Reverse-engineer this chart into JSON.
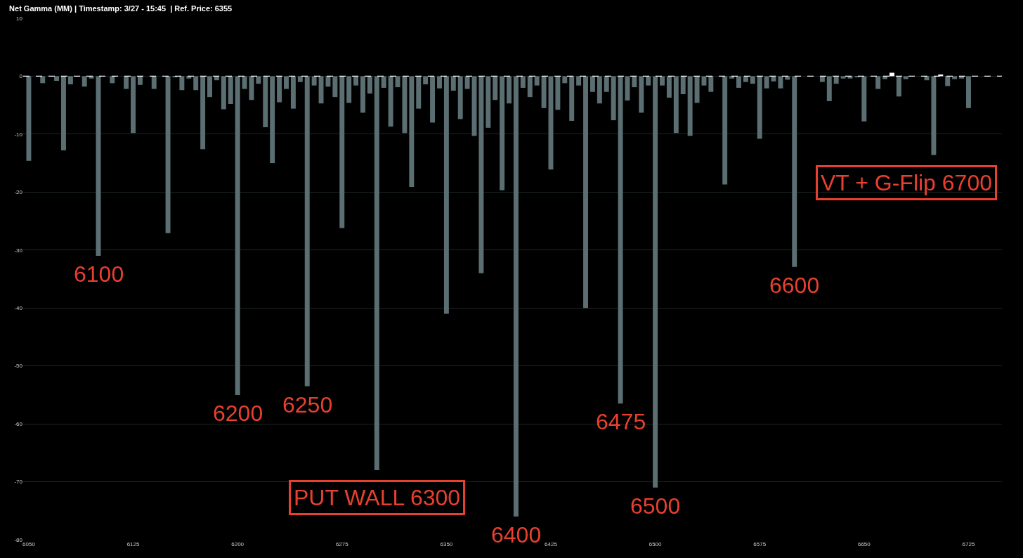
{
  "chart_data": {
    "type": "bar",
    "title": "Net Gamma (MM) | Timestamp: 3/27 - 15:45  | Ref. Price: 6355",
    "x": [
      6050,
      6055,
      6060,
      6065,
      6070,
      6075,
      6080,
      6085,
      6090,
      6095,
      6100,
      6105,
      6110,
      6115,
      6120,
      6125,
      6130,
      6135,
      6140,
      6145,
      6150,
      6155,
      6160,
      6165,
      6170,
      6175,
      6180,
      6185,
      6190,
      6195,
      6200,
      6205,
      6210,
      6215,
      6220,
      6225,
      6230,
      6235,
      6240,
      6245,
      6250,
      6255,
      6260,
      6265,
      6270,
      6275,
      6280,
      6285,
      6290,
      6295,
      6300,
      6305,
      6310,
      6315,
      6320,
      6325,
      6330,
      6335,
      6340,
      6345,
      6350,
      6355,
      6360,
      6365,
      6370,
      6375,
      6380,
      6385,
      6390,
      6395,
      6400,
      6405,
      6410,
      6415,
      6420,
      6425,
      6430,
      6435,
      6440,
      6445,
      6450,
      6455,
      6460,
      6465,
      6470,
      6475,
      6480,
      6485,
      6490,
      6495,
      6500,
      6505,
      6510,
      6515,
      6520,
      6525,
      6530,
      6535,
      6540,
      6545,
      6550,
      6555,
      6560,
      6565,
      6570,
      6575,
      6580,
      6585,
      6590,
      6595,
      6600,
      6605,
      6610,
      6615,
      6620,
      6625,
      6630,
      6635,
      6640,
      6645,
      6650,
      6655,
      6660,
      6665,
      6670,
      6675,
      6680,
      6685,
      6690,
      6695,
      6700,
      6705,
      6710,
      6715,
      6720,
      6725,
      6730,
      6735,
      6740,
      6745
    ],
    "values": [
      -14.6,
      0,
      -1.2,
      0,
      -0.8,
      -12.8,
      -1.4,
      0,
      -1.8,
      -0.4,
      -31,
      0,
      -1.2,
      0,
      -2.2,
      -9.8,
      -1.5,
      0,
      -2.2,
      0,
      -27.1,
      -0.2,
      -2.4,
      -0.4,
      -2.4,
      -12.6,
      -3.6,
      -0.7,
      -5.7,
      -4.8,
      -55,
      -2.2,
      -4.1,
      -1.3,
      -8.8,
      -15,
      -4.5,
      -2.2,
      -5.6,
      -1,
      -53.5,
      -1.6,
      -4.7,
      -1.8,
      -3.6,
      -26.2,
      -4.6,
      -1.6,
      -6.3,
      -3,
      -68,
      -2,
      -8.7,
      -1.9,
      -9.8,
      -19.1,
      -5.6,
      -1.4,
      -8,
      -2.1,
      -41,
      -2.5,
      -7.4,
      -2.2,
      -10.3,
      -34,
      -8.9,
      -4.1,
      -19.7,
      -4.7,
      -76,
      -2,
      -3.6,
      -1.6,
      -5.5,
      -16.1,
      -5.8,
      -1.2,
      -7.7,
      -1.6,
      -40,
      -2.7,
      -4.7,
      -2.7,
      -7.6,
      -56.5,
      -4.2,
      -1.9,
      -6.3,
      -1.6,
      -71,
      -1.6,
      -3.7,
      -9.8,
      -3.1,
      -10.3,
      -4.6,
      -1.6,
      -2.7,
      0,
      -18.7,
      -0.4,
      -2,
      -1,
      -1.3,
      -10.8,
      -2.1,
      -0.9,
      -2.1,
      -0.6,
      -32.9,
      0,
      0,
      0,
      -1,
      -4.3,
      -1.3,
      -0.4,
      -0.4,
      -0.2,
      -7.8,
      0,
      -2.2,
      -0.5,
      0.6,
      -3.5,
      -0.5,
      0,
      0,
      -0.7,
      -13.6,
      0.3,
      -1.7,
      -0.5,
      -0.4,
      -5.5,
      0,
      0,
      null,
      0
    ],
    "colors": [
      "#5b6f73",
      "#5b6f73",
      "#5b6f73",
      "#5b6f73",
      "#5b6f73",
      "#5b6f73",
      "#5b6f73",
      "#5b6f73",
      "#5b6f73",
      "#5b6f73",
      "#5b6f73",
      "#5b6f73",
      "#5b6f73",
      "#5b6f73",
      "#5b6f73",
      "#5b6f73",
      "#5b6f73",
      "#5b6f73",
      "#5b6f73",
      "#5b6f73",
      "#5b6f73",
      "#5b6f73",
      "#5b6f73",
      "#5b6f73",
      "#5b6f73",
      "#5b6f73",
      "#5b6f73",
      "#5b6f73",
      "#5b6f73",
      "#5b6f73",
      "#5b6f73",
      "#5b6f73",
      "#5b6f73",
      "#5b6f73",
      "#5b6f73",
      "#5b6f73",
      "#5b6f73",
      "#5b6f73",
      "#5b6f73",
      "#5b6f73",
      "#5b6f73",
      "#5b6f73",
      "#5b6f73",
      "#5b6f73",
      "#5b6f73",
      "#5b6f73",
      "#5b6f73",
      "#5b6f73",
      "#5b6f73",
      "#5b6f73",
      "#5b6f73",
      "#5b6f73",
      "#5b6f73",
      "#5b6f73",
      "#5b6f73",
      "#5b6f73",
      "#5b6f73",
      "#5b6f73",
      "#5b6f73",
      "#5b6f73",
      "#5b6f73",
      "#5b6f73",
      "#5b6f73",
      "#5b6f73",
      "#5b6f73",
      "#5b6f73",
      "#5b6f73",
      "#5b6f73",
      "#5b6f73",
      "#5b6f73",
      "#5b6f73",
      "#5b6f73",
      "#5b6f73",
      "#5b6f73",
      "#5b6f73",
      "#5b6f73",
      "#5b6f73",
      "#5b6f73",
      "#5b6f73",
      "#5b6f73",
      "#5b6f73",
      "#5b6f73",
      "#5b6f73",
      "#5b6f73",
      "#5b6f73",
      "#5b6f73",
      "#5b6f73",
      "#5b6f73",
      "#5b6f73",
      "#5b6f73",
      "#5b6f73",
      "#5b6f73",
      "#5b6f73",
      "#5b6f73",
      "#5b6f73",
      "#5b6f73",
      "#5b6f73",
      "#5b6f73",
      "#5b6f73",
      "#5b6f73",
      "#5b6f73",
      "#5b6f73",
      "#5b6f73",
      "#5b6f73",
      "#5b6f73",
      "#5b6f73",
      "#5b6f73",
      "#5b6f73",
      "#5b6f73",
      "#5b6f73",
      "#5b6f73",
      "#5b6f73",
      "#5b6f73",
      "#5b6f73",
      "#5b6f73",
      "#5b6f73",
      "#5b6f73",
      "#5b6f73",
      "#5b6f73",
      "#5b6f73",
      "#5b6f73",
      "#5b6f73",
      "#5b6f73",
      "#5b6f73",
      "#ffffff",
      "#5b6f73",
      "#5b6f73",
      "#5b6f73",
      "#5b6f73",
      "#5b6f73",
      "#5b6f73",
      "#ffffff",
      "#5b6f73",
      "#5b6f73",
      "#5b6f73",
      "#5b6f73",
      "#5b6f73",
      "#5b6f73",
      "#ffffff",
      "#5b6f73"
    ],
    "xlim": [
      6046,
      6749
    ],
    "xticks": [
      6050,
      6125,
      6200,
      6275,
      6350,
      6425,
      6500,
      6575,
      6650,
      6725
    ],
    "ylim": [
      -80,
      10
    ],
    "yticks": [
      10,
      0,
      -10,
      -20,
      -30,
      -40,
      -50,
      -60,
      -70,
      -80
    ],
    "grid": "y",
    "ref_lines": [
      {
        "axis": "y",
        "value": 0,
        "color": "#ffffff",
        "line_style": "dashed"
      }
    ],
    "annotations": [
      {
        "text": "6100",
        "x": 6100,
        "y": -31
      },
      {
        "text": "6200",
        "x": 6200,
        "y": -55
      },
      {
        "text": "6250",
        "x": 6250,
        "y": -53.5
      },
      {
        "text": "PUT WALL 6300",
        "x": 6300,
        "y": -68
      },
      {
        "text": "6400",
        "x": 6400,
        "y": -76
      },
      {
        "text": "6475",
        "x": 6475,
        "y": -56.5
      },
      {
        "text": "6500",
        "x": 6500,
        "y": -71
      },
      {
        "text": "6600",
        "x": 6600,
        "y": -32.9
      },
      {
        "text": "VT + G-Flip 6700",
        "x": 6700,
        "y": -13.6
      }
    ]
  }
}
